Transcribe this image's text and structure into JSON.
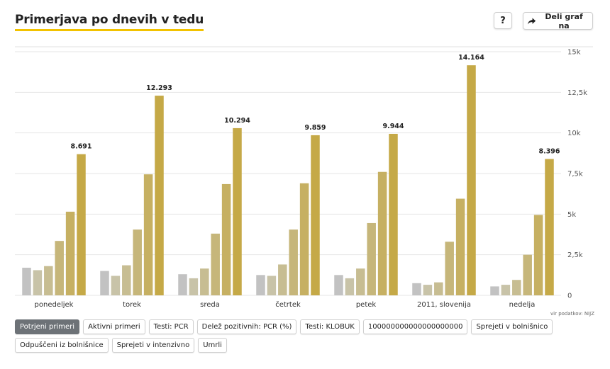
{
  "header": {
    "title": "Primerjava po dnevih v tedu",
    "help_label": "?",
    "share_label": "Deli graf na"
  },
  "source_text": "vir podatkov: NIJZ",
  "metric_buttons": [
    {
      "label": "Potrjeni primeri",
      "active": true
    },
    {
      "label": "Aktivni primeri",
      "active": false
    },
    {
      "label": "Testi: PCR",
      "active": false
    },
    {
      "label": "Delež pozitivnih: PCR (%)",
      "active": false
    },
    {
      "label": "Testi: KLOBUK",
      "active": false
    },
    {
      "label": "100000000000000000000",
      "active": false
    },
    {
      "label": "Sprejeti v bolnišnico",
      "active": false
    },
    {
      "label": "Odpuščeni iz bolnišnice",
      "active": false
    },
    {
      "label": "Sprejeti v intenzivno",
      "active": false
    },
    {
      "label": "Umrli",
      "active": false
    }
  ],
  "colors": {
    "accent": "#f2c200",
    "series": [
      "#c2c2c2",
      "#c8c3a8",
      "#c7bd92",
      "#c6b67a",
      "#c6b062",
      "#c5a947",
      "#c4a62c"
    ],
    "grid": "#e6e6e6"
  },
  "chart_data": {
    "type": "bar",
    "title": "Primerjava po dnevih v tedu",
    "categories": [
      "ponedeljek",
      "torek",
      "sreda",
      "četrtek",
      "petek",
      "2011, slovenija",
      "nedelja"
    ],
    "series": [
      {
        "values": [
          1700,
          1500,
          1300,
          1250,
          1250,
          750,
          550
        ]
      },
      {
        "values": [
          1550,
          1200,
          1050,
          1200,
          1050,
          650,
          650
        ]
      },
      {
        "values": [
          1800,
          1850,
          1650,
          1900,
          1650,
          800,
          950
        ]
      },
      {
        "values": [
          3350,
          4050,
          3800,
          4050,
          4450,
          3300,
          2500
        ]
      },
      {
        "values": [
          5150,
          7450,
          6850,
          6900,
          7600,
          5950,
          4950
        ]
      },
      {
        "values": [
          8691,
          12293,
          10294,
          9859,
          9944,
          14164,
          8396
        ]
      }
    ],
    "data_labels": [
      "8.691",
      "12.293",
      "10.294",
      "9.859",
      "9.944",
      "14.164",
      "8.396"
    ],
    "ylim": [
      0,
      15000
    ],
    "yticks": [
      {
        "value": 0,
        "label": "0"
      },
      {
        "value": 2500,
        "label": "2,5k"
      },
      {
        "value": 5000,
        "label": "5k"
      },
      {
        "value": 7500,
        "label": "7,5k"
      },
      {
        "value": 10000,
        "label": "10k"
      },
      {
        "value": 12500,
        "label": "12,5k"
      },
      {
        "value": 15000,
        "label": "15k"
      }
    ],
    "xlabel": "",
    "ylabel": "",
    "grid": true,
    "y_axis_position": "right",
    "legend": "none"
  }
}
